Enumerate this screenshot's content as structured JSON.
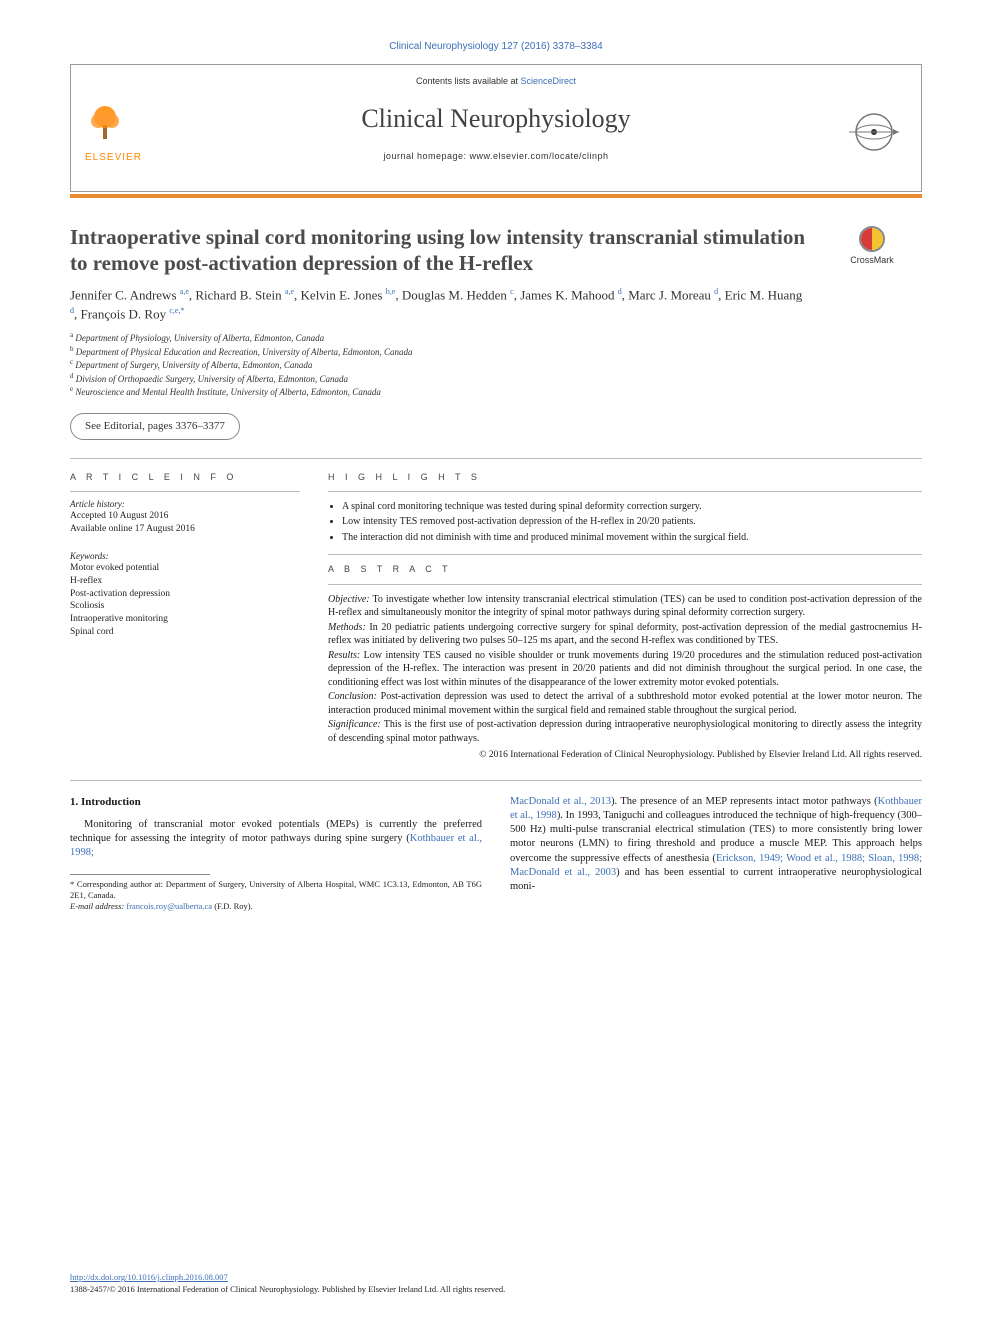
{
  "colors": {
    "link": "#3b6fb6",
    "accent_bar": "#e98b2f",
    "elsevier_orange": "#ff8800",
    "text": "#1a1a1a",
    "muted": "#4b4b4b",
    "rule": "#bbbbbb"
  },
  "running_head": "Clinical Neurophysiology 127 (2016) 3378–3384",
  "masthead": {
    "contents_prefix": "Contents lists available at ",
    "contents_link": "ScienceDirect",
    "journal_title": "Clinical Neurophysiology",
    "homepage_label": "journal homepage: www.elsevier.com/locate/clinph",
    "publisher_word": "ELSEVIER"
  },
  "article": {
    "title": "Intraoperative spinal cord monitoring using low intensity transcranial stimulation to remove post-activation depression of the H-reflex",
    "crossmark_label": "CrossMark",
    "authors_html": "Jennifer C. Andrews <sup>a,e</sup>, Richard B. Stein <sup>a,e</sup>, Kelvin E. Jones <sup>b,e</sup>, Douglas M. Hedden <sup>c</sup>, James K. Mahood <sup>d</sup>, Marc J. Moreau <sup>d</sup>, Eric M. Huang <sup>d</sup>, François D. Roy <sup>c,e,*</sup>",
    "affiliations": [
      "a Department of Physiology, University of Alberta, Edmonton, Canada",
      "b Department of Physical Education and Recreation, University of Alberta, Edmonton, Canada",
      "c Department of Surgery, University of Alberta, Edmonton, Canada",
      "d Division of Orthopaedic Surgery, University of Alberta, Edmonton, Canada",
      "e Neuroscience and Mental Health Institute, University of Alberta, Edmonton, Canada"
    ],
    "editorial_note": "See Editorial, pages 3376–3377"
  },
  "article_info": {
    "heading": "A R T I C L E   I N F O",
    "history_heading": "Article history:",
    "history_lines": [
      "Accepted 10 August 2016",
      "Available online 17 August 2016"
    ],
    "keywords_heading": "Keywords:",
    "keywords": [
      "Motor evoked potential",
      "H-reflex",
      "Post-activation depression",
      "Scoliosis",
      "Intraoperative monitoring",
      "Spinal cord"
    ]
  },
  "highlights": {
    "heading": "H I G H L I G H T S",
    "items": [
      "A spinal cord monitoring technique was tested during spinal deformity correction surgery.",
      "Low intensity TES removed post-activation depression of the H-reflex in 20/20 patients.",
      "The interaction did not diminish with time and produced minimal movement within the surgical field."
    ]
  },
  "abstract": {
    "heading": "A B S T R A C T",
    "sections": [
      {
        "label": "Objective:",
        "text": "To investigate whether low intensity transcranial electrical stimulation (TES) can be used to condition post-activation depression of the H-reflex and simultaneously monitor the integrity of spinal motor pathways during spinal deformity correction surgery."
      },
      {
        "label": "Methods:",
        "text": "In 20 pediatric patients undergoing corrective surgery for spinal deformity, post-activation depression of the medial gastrocnemius H-reflex was initiated by delivering two pulses 50–125 ms apart, and the second H-reflex was conditioned by TES."
      },
      {
        "label": "Results:",
        "text": "Low intensity TES caused no visible shoulder or trunk movements during 19/20 procedures and the stimulation reduced post-activation depression of the H-reflex. The interaction was present in 20/20 patients and did not diminish throughout the surgical period. In one case, the conditioning effect was lost within minutes of the disappearance of the lower extremity motor evoked potentials."
      },
      {
        "label": "Conclusion:",
        "text": "Post-activation depression was used to detect the arrival of a subthreshold motor evoked potential at the lower motor neuron. The interaction produced minimal movement within the surgical field and remained stable throughout the surgical period."
      },
      {
        "label": "Significance:",
        "text": "This is the first use of post-activation depression during intraoperative neurophysiological monitoring to directly assess the integrity of descending spinal motor pathways."
      }
    ],
    "copyright": "© 2016 International Federation of Clinical Neurophysiology. Published by Elsevier Ireland Ltd. All rights reserved."
  },
  "body": {
    "section_number": "1.",
    "section_title": "Introduction",
    "left_para_pre": "Monitoring of transcranial motor evoked potentials (MEPs) is currently the preferred technique for assessing the integrity of motor pathways during spine surgery (",
    "left_cite": "Kothbauer et al., 1998;",
    "right_cite1": "MacDonald et al., 2013",
    "right_seg1": "). The presence of an MEP represents intact motor pathways (",
    "right_cite2": "Kothbauer et al., 1998",
    "right_seg2": "). In 1993, Taniguchi and colleagues introduced the technique of high-frequency (300–500 Hz) multi-pulse transcranial electrical stimulation (TES) to more consistently bring lower motor neurons (LMN) to firing threshold and produce a muscle MEP. This approach helps overcome the suppressive effects of anesthesia (",
    "right_cite3": "Erickson, 1949; Wood et al., 1988; Sloan, 1998; MacDonald et al., 2003",
    "right_seg3": ") and has been essential to current intraoperative neurophysiological moni-"
  },
  "footnotes": {
    "corresponding": "* Corresponding author at: Department of Surgery, University of Alberta Hospital, WMC 1C3.13, Edmonton, AB T6G 2E1, Canada.",
    "email_label": "E-mail address:",
    "email": "francois.roy@ualberta.ca",
    "email_who": "(F.D. Roy)."
  },
  "footer": {
    "doi": "http://dx.doi.org/10.1016/j.clinph.2016.08.007",
    "issn_line": "1388-2457/© 2016 International Federation of Clinical Neurophysiology. Published by Elsevier Ireland Ltd. All rights reserved."
  }
}
